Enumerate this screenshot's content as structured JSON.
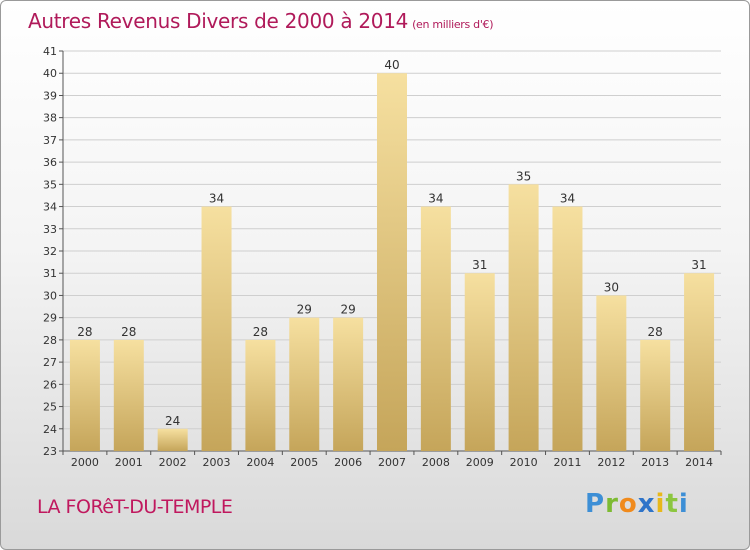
{
  "title": "Autres Revenus Divers de 2000 à 2014",
  "subtitle": "(en milliers d'€)",
  "place": "LA FORêT-DU-TEMPLE",
  "logo": "Proxiti",
  "colors": {
    "title": "#b01a5a",
    "bar_top": "#f5dd98",
    "bar_bottom": "#c8a95c",
    "grid": "#cccccc"
  },
  "chart_data": {
    "type": "bar",
    "title": "Autres Revenus Divers de 2000 à 2014",
    "subtitle": "(en milliers d'€)",
    "categories": [
      "2000",
      "2001",
      "2002",
      "2003",
      "2004",
      "2005",
      "2006",
      "2007",
      "2008",
      "2009",
      "2010",
      "2011",
      "2012",
      "2013",
      "2014"
    ],
    "values": [
      28,
      28,
      24,
      34,
      28,
      29,
      29,
      40,
      34,
      31,
      35,
      34,
      30,
      28,
      31
    ],
    "ylim": [
      23,
      41
    ],
    "yticks": [
      23,
      24,
      25,
      26,
      27,
      28,
      29,
      30,
      31,
      32,
      33,
      34,
      35,
      36,
      37,
      38,
      39,
      40,
      41
    ],
    "grid": true,
    "legend": "none"
  }
}
